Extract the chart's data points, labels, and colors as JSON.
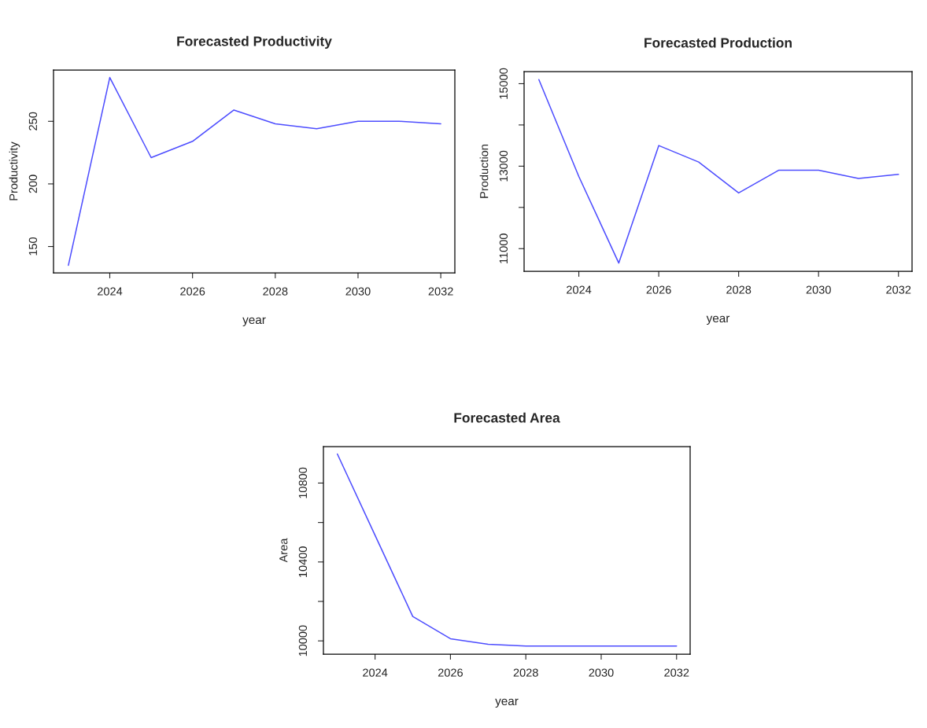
{
  "chart_data": [
    {
      "type": "line",
      "title": "Forecasted Productivity",
      "xlabel": "year",
      "ylabel": "Productivity",
      "x": [
        2023,
        2024,
        2025,
        2026,
        2027,
        2028,
        2029,
        2030,
        2031,
        2032
      ],
      "series": [
        {
          "color": "#4d4dff",
          "values": [
            135,
            285,
            221,
            234,
            259,
            248,
            244,
            250,
            250,
            248
          ]
        }
      ],
      "xlim": [
        2022.64,
        2032.34
      ],
      "ylim": [
        129,
        291
      ],
      "xticks": [
        2024,
        2026,
        2028,
        2030,
        2032
      ],
      "yticks": [
        150,
        200,
        250
      ]
    },
    {
      "type": "line",
      "title": "Forecasted Production",
      "xlabel": "year",
      "ylabel": "Production",
      "x": [
        2023,
        2024,
        2025,
        2026,
        2027,
        2028,
        2029,
        2030,
        2031,
        2032
      ],
      "series": [
        {
          "color": "#4d4dff",
          "values": [
            15100,
            12750,
            10650,
            13500,
            13100,
            12350,
            12900,
            12900,
            12700,
            12800
          ]
        }
      ],
      "xlim": [
        2022.63,
        2032.34
      ],
      "ylim": [
        10452,
        15295
      ],
      "xticks": [
        2024,
        2026,
        2028,
        2030,
        2032
      ],
      "yticks": [
        11000,
        {
          "value": 12000,
          "label": null
        },
        13000,
        {
          "value": 14000,
          "label": null
        },
        15000
      ]
    },
    {
      "type": "line",
      "title": "Forecasted Area",
      "xlabel": "year",
      "ylabel": "Area",
      "x": [
        2023,
        2024,
        2025,
        2026,
        2027,
        2028,
        2029,
        2030,
        2031,
        2032
      ],
      "series": [
        {
          "color": "#4d4dff",
          "values": [
            10947,
            10535,
            10124,
            10011,
            9983,
            9974,
            9974,
            9974,
            9974,
            9974
          ]
        }
      ],
      "xlim": [
        2022.63,
        2032.36
      ],
      "ylim": [
        9933,
        10985
      ],
      "xticks": [
        2024,
        2026,
        2028,
        2030,
        2032
      ],
      "yticks": [
        10000,
        {
          "value": 10200,
          "label": null
        },
        10400,
        {
          "value": 10600,
          "label": null
        },
        10800
      ]
    }
  ]
}
